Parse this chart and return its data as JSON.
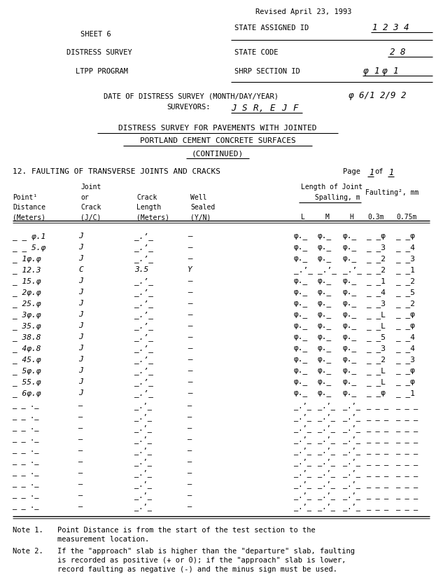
{
  "bg_color": "#ffffff",
  "text_color": "#000000",
  "revised": "Revised April 23, 1993",
  "state_id_label": "STATE ASSIGNED ID",
  "state_id_value": "1 2 3 4",
  "sheet_label": "SHEET 6",
  "distress_label": "DISTRESS SURVEY",
  "state_code_label": "STATE CODE",
  "state_code_value": "2 8",
  "ltpp_label": "LTPP PROGRAM",
  "shrp_label": "SHRP SECTION ID",
  "shrp_value": "φ1φ1",
  "date_line": "DATE OF DISTRESS SURVEY (MONTH/DAY/YEAR)  φ 6/1 2/9 2",
  "surveyors_line": "SURVEYORS: J S R, E J F",
  "title1": "DISTRESS SURVEY FOR PAVEMENTS WITH JOINTED",
  "title2": "PORTLAND CEMENT CONCRETE SURFACES",
  "title3": "(CONTINUED)",
  "section12": "12. FAULTING OF TRANSVERSE JOINTS AND CRACKS",
  "page_text": "Page  1  of  1",
  "note1a": "Note 1.   Point Distance is from the start of the test section to the",
  "note1b": "          measurement location.",
  "note2a": "Note 2.   If the \"approach\" slab is higher than the \"departure\" slab, faulting",
  "note2b": "          is recorded as positive (+ or 0); if the \"approach\" slab is lower,",
  "note2c": "          record faulting as negative (-) and the minus sign must be used."
}
